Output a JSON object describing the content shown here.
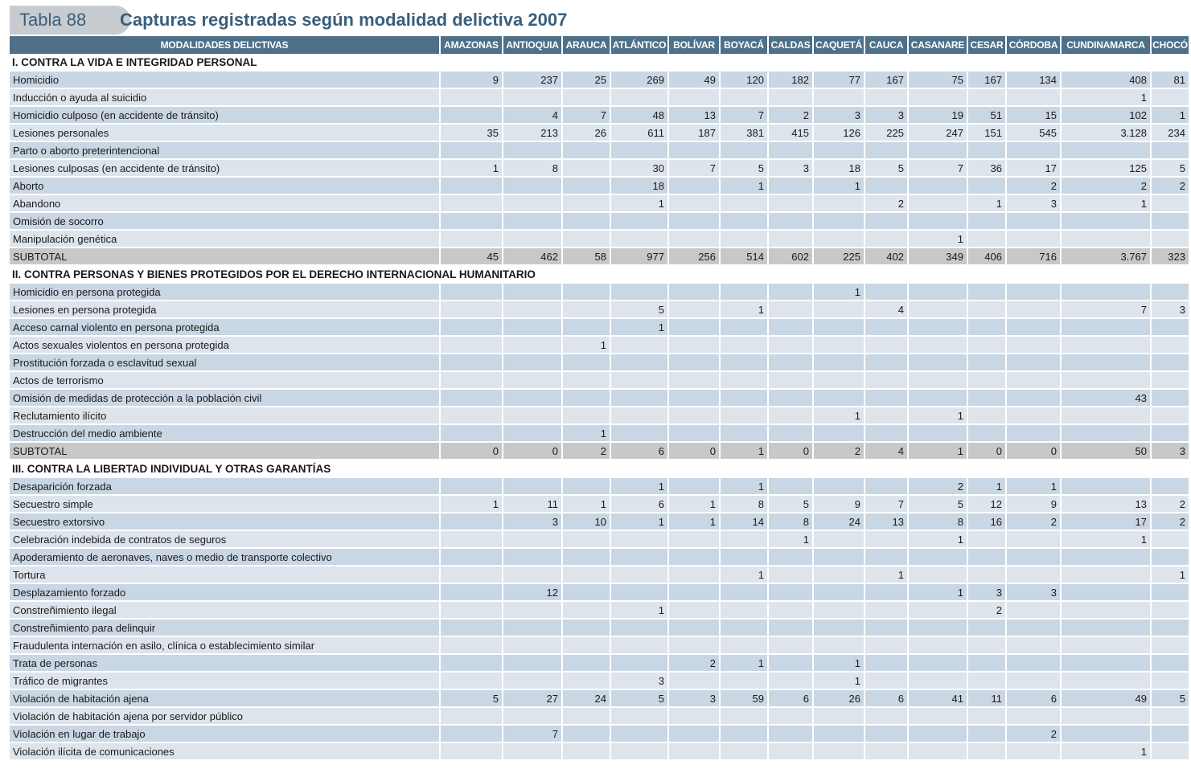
{
  "header": {
    "tab_label": "Tabla 88",
    "title": "Capturas registradas según modalidad delictiva 2007"
  },
  "colors": {
    "header_bg": "#4e7089",
    "row_odd": "#c9d6e3",
    "row_even": "#dde4ec",
    "subtotal_bg": "#c8c8c8",
    "title": "#3a5f7c"
  },
  "table": {
    "columns": [
      "MODALIDADES DELICTIVAS",
      "AMAZONAS",
      "ANTIOQUIA",
      "ARAUCA",
      "ATLÁNTICO",
      "BOLÍVAR",
      "BOYACÁ",
      "CALDAS",
      "CAQUETÁ",
      "CAUCA",
      "CASANARE",
      "CESAR",
      "CÓRDOBA",
      "CUNDINAMARCA",
      "CHOCÓ"
    ],
    "sections": [
      {
        "title": "I. CONTRA LA VIDA E INTEGRIDAD PERSONAL",
        "rows": [
          {
            "label": "Homicidio",
            "values": [
              "9",
              "237",
              "25",
              "269",
              "49",
              "120",
              "182",
              "77",
              "167",
              "75",
              "167",
              "134",
              "408",
              "81"
            ]
          },
          {
            "label": "Inducción o ayuda al suicidio",
            "values": [
              "",
              "",
              "",
              "",
              "",
              "",
              "",
              "",
              "",
              "",
              "",
              "",
              "1",
              ""
            ]
          },
          {
            "label": "Homicidio culposo (en accidente de tránsito)",
            "values": [
              "",
              "4",
              "7",
              "48",
              "13",
              "7",
              "2",
              "3",
              "3",
              "19",
              "51",
              "15",
              "102",
              "1"
            ]
          },
          {
            "label": "Lesiones personales",
            "values": [
              "35",
              "213",
              "26",
              "611",
              "187",
              "381",
              "415",
              "126",
              "225",
              "247",
              "151",
              "545",
              "3.128",
              "234"
            ]
          },
          {
            "label": "Parto o aborto preterintencional",
            "values": [
              "",
              "",
              "",
              "",
              "",
              "",
              "",
              "",
              "",
              "",
              "",
              "",
              "",
              ""
            ]
          },
          {
            "label": "Lesiones culposas (en accidente de tránsito)",
            "values": [
              "1",
              "8",
              "",
              "30",
              "7",
              "5",
              "3",
              "18",
              "5",
              "7",
              "36",
              "17",
              "125",
              "5"
            ]
          },
          {
            "label": "Aborto",
            "values": [
              "",
              "",
              "",
              "18",
              "",
              "1",
              "",
              "1",
              "",
              "",
              "",
              "2",
              "2",
              "2"
            ]
          },
          {
            "label": "Abandono",
            "values": [
              "",
              "",
              "",
              "1",
              "",
              "",
              "",
              "",
              "2",
              "",
              "1",
              "3",
              "1",
              ""
            ]
          },
          {
            "label": "Omisión de socorro",
            "values": [
              "",
              "",
              "",
              "",
              "",
              "",
              "",
              "",
              "",
              "",
              "",
              "",
              "",
              ""
            ]
          },
          {
            "label": "Manipulación genética",
            "values": [
              "",
              "",
              "",
              "",
              "",
              "",
              "",
              "",
              "",
              "1",
              "",
              "",
              "",
              ""
            ]
          }
        ],
        "subtotal": {
          "label": "SUBTOTAL",
          "values": [
            "45",
            "462",
            "58",
            "977",
            "256",
            "514",
            "602",
            "225",
            "402",
            "349",
            "406",
            "716",
            "3.767",
            "323"
          ]
        }
      },
      {
        "title": "II. CONTRA PERSONAS Y BIENES PROTEGIDOS POR EL DERECHO INTERNACIONAL HUMANITARIO",
        "rows": [
          {
            "label": "Homicidio en persona protegida",
            "values": [
              "",
              "",
              "",
              "",
              "",
              "",
              "",
              "1",
              "",
              "",
              "",
              "",
              "",
              ""
            ]
          },
          {
            "label": "Lesiones en persona protegida",
            "values": [
              "",
              "",
              "",
              "5",
              "",
              "1",
              "",
              "",
              "4",
              "",
              "",
              "",
              "7",
              "3"
            ]
          },
          {
            "label": "Acceso carnal violento en persona protegida",
            "values": [
              "",
              "",
              "",
              "1",
              "",
              "",
              "",
              "",
              "",
              "",
              "",
              "",
              "",
              ""
            ]
          },
          {
            "label": "Actos sexuales violentos en persona protegida",
            "values": [
              "",
              "",
              "1",
              "",
              "",
              "",
              "",
              "",
              "",
              "",
              "",
              "",
              "",
              ""
            ]
          },
          {
            "label": "Prostitución forzada o esclavitud sexual",
            "values": [
              "",
              "",
              "",
              "",
              "",
              "",
              "",
              "",
              "",
              "",
              "",
              "",
              "",
              ""
            ]
          },
          {
            "label": "Actos de terrorismo",
            "values": [
              "",
              "",
              "",
              "",
              "",
              "",
              "",
              "",
              "",
              "",
              "",
              "",
              "",
              ""
            ]
          },
          {
            "label": "Omisión de medidas de protección a la población civil",
            "values": [
              "",
              "",
              "",
              "",
              "",
              "",
              "",
              "",
              "",
              "",
              "",
              "",
              "43",
              ""
            ]
          },
          {
            "label": "Reclutamiento ilícito",
            "values": [
              "",
              "",
              "",
              "",
              "",
              "",
              "",
              "1",
              "",
              "1",
              "",
              "",
              "",
              ""
            ]
          },
          {
            "label": "Destrucción del medio ambiente",
            "values": [
              "",
              "",
              "1",
              "",
              "",
              "",
              "",
              "",
              "",
              "",
              "",
              "",
              "",
              ""
            ]
          }
        ],
        "subtotal": {
          "label": "SUBTOTAL",
          "values": [
            "0",
            "0",
            "2",
            "6",
            "0",
            "1",
            "0",
            "2",
            "4",
            "1",
            "0",
            "0",
            "50",
            "3"
          ]
        }
      },
      {
        "title": "III. CONTRA LA LIBERTAD INDIVIDUAL Y OTRAS GARANTÍAS",
        "rows": [
          {
            "label": "Desaparición forzada",
            "values": [
              "",
              "",
              "",
              "1",
              "",
              "1",
              "",
              "",
              "",
              "2",
              "1",
              "1",
              "",
              ""
            ]
          },
          {
            "label": "Secuestro simple",
            "values": [
              "1",
              "11",
              "1",
              "6",
              "1",
              "8",
              "5",
              "9",
              "7",
              "5",
              "12",
              "9",
              "13",
              "2"
            ]
          },
          {
            "label": "Secuestro extorsivo",
            "values": [
              "",
              "3",
              "10",
              "1",
              "1",
              "14",
              "8",
              "24",
              "13",
              "8",
              "16",
              "2",
              "17",
              "2"
            ]
          },
          {
            "label": "Celebración indebida de contratos de seguros",
            "values": [
              "",
              "",
              "",
              "",
              "",
              "",
              "1",
              "",
              "",
              "1",
              "",
              "",
              "1",
              ""
            ]
          },
          {
            "label": "Apoderamiento de aeronaves, naves o medio de transporte colectivo",
            "values": [
              "",
              "",
              "",
              "",
              "",
              "",
              "",
              "",
              "",
              "",
              "",
              "",
              "",
              ""
            ]
          },
          {
            "label": "Tortura",
            "values": [
              "",
              "",
              "",
              "",
              "",
              "1",
              "",
              "",
              "1",
              "",
              "",
              "",
              "",
              "1"
            ]
          },
          {
            "label": "Desplazamiento forzado",
            "values": [
              "",
              "12",
              "",
              "",
              "",
              "",
              "",
              "",
              "",
              "1",
              "3",
              "3",
              "",
              ""
            ]
          },
          {
            "label": "Constreñimiento ilegal",
            "values": [
              "",
              "",
              "",
              "1",
              "",
              "",
              "",
              "",
              "",
              "",
              "2",
              "",
              "",
              ""
            ]
          },
          {
            "label": "Constreñimiento para delinquir",
            "values": [
              "",
              "",
              "",
              "",
              "",
              "",
              "",
              "",
              "",
              "",
              "",
              "",
              "",
              ""
            ]
          },
          {
            "label": "Fraudulenta internación en asilo, clínica o establecimiento similar",
            "values": [
              "",
              "",
              "",
              "",
              "",
              "",
              "",
              "",
              "",
              "",
              "",
              "",
              "",
              ""
            ]
          },
          {
            "label": "Trata de personas",
            "values": [
              "",
              "",
              "",
              "",
              "2",
              "1",
              "",
              "1",
              "",
              "",
              "",
              "",
              "",
              ""
            ]
          },
          {
            "label": "Tráfico de migrantes",
            "values": [
              "",
              "",
              "",
              "3",
              "",
              "",
              "",
              "1",
              "",
              "",
              "",
              "",
              "",
              ""
            ]
          },
          {
            "label": "Violación de habitación ajena",
            "values": [
              "5",
              "27",
              "24",
              "5",
              "3",
              "59",
              "6",
              "26",
              "6",
              "41",
              "11",
              "6",
              "49",
              "5"
            ]
          },
          {
            "label": "Violación de habitación ajena por servidor público",
            "values": [
              "",
              "",
              "",
              "",
              "",
              "",
              "",
              "",
              "",
              "",
              "",
              "",
              "",
              ""
            ]
          },
          {
            "label": "Violación en lugar de trabajo",
            "values": [
              "",
              "7",
              "",
              "",
              "",
              "",
              "",
              "",
              "",
              "",
              "",
              "2",
              "",
              ""
            ]
          },
          {
            "label": "Violación ilícita de comunicaciones",
            "values": [
              "",
              "",
              "",
              "",
              "",
              "",
              "",
              "",
              "",
              "",
              "",
              "",
              "1",
              ""
            ]
          }
        ]
      }
    ]
  }
}
